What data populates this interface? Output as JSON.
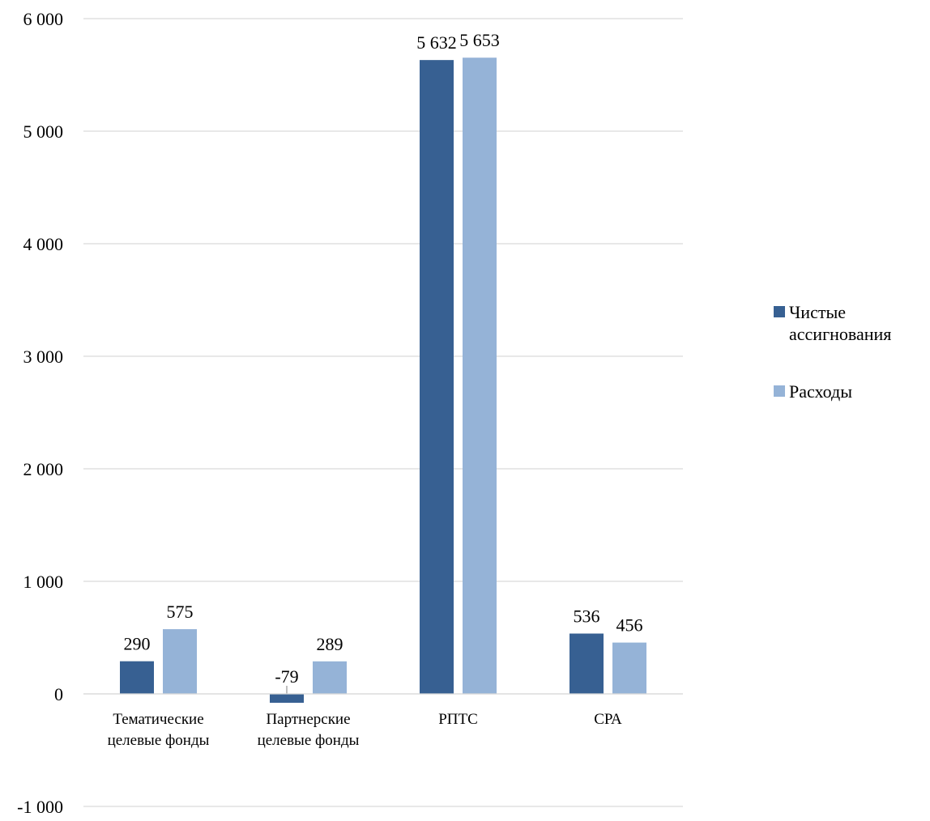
{
  "chart_data": {
    "type": "bar",
    "categories": [
      "Тематические\nцелевые фонды",
      "Партнерские\nцелевые фонды",
      "РПТС",
      "СРА"
    ],
    "series": [
      {
        "name": "Чистые ассигнования",
        "values": [
          290,
          -79,
          5632,
          536
        ],
        "labels": [
          "290",
          "-79",
          "5 632",
          "536"
        ],
        "color": "#376092"
      },
      {
        "name": "Расходы",
        "values": [
          575,
          289,
          5653,
          456
        ],
        "labels": [
          "575",
          "289",
          "5 653",
          "456"
        ],
        "color": "#95b3d7"
      }
    ],
    "ylim": [
      -1000,
      6000
    ],
    "yticks": [
      -1000,
      0,
      1000,
      2000,
      3000,
      4000,
      5000,
      6000
    ],
    "ytick_labels": [
      "-1 000",
      "0",
      "1 000",
      "2 000",
      "3 000",
      "4 000",
      "5 000",
      "6 000"
    ],
    "grid": true,
    "legend_position": "right",
    "title": "",
    "xlabel": "",
    "ylabel": ""
  },
  "legend": {
    "items": [
      {
        "label": "Чистые ассигнования",
        "color": "#376092"
      },
      {
        "label": "Расходы",
        "color": "#95b3d7"
      }
    ]
  }
}
